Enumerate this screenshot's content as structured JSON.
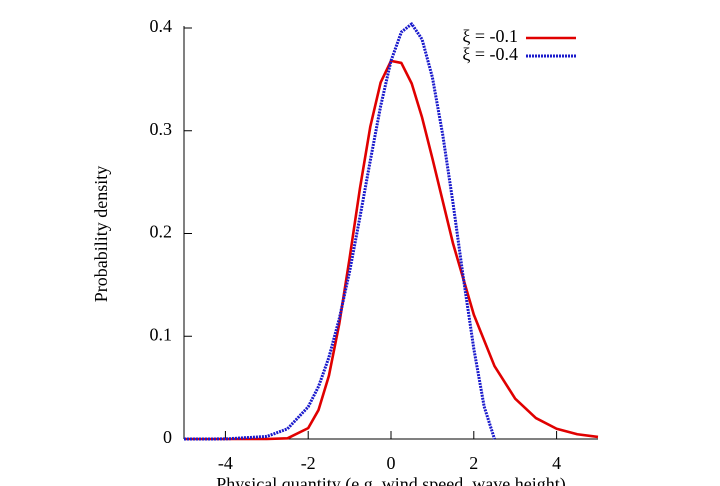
{
  "chart_data": {
    "type": "line",
    "y_label": "Probability density",
    "x_label": "Physical quantity (e.g. wind speed, wave height)",
    "xlim": [
      -5,
      5
    ],
    "xticks": [
      -4,
      -2,
      0,
      2,
      4
    ],
    "ylim": [
      0,
      0.4
    ],
    "yticks": [
      0,
      0.1,
      0.2,
      0.3,
      0.4
    ],
    "legend": "top-right",
    "series": [
      {
        "name": "ξ = -0.1",
        "color": "#e00000",
        "dash": "solid",
        "x": [
          -5,
          -4,
          -3,
          -2.5,
          -2,
          -1.75,
          -1.5,
          -1.25,
          -1,
          -0.75,
          -0.5,
          -0.25,
          0,
          0.25,
          0.5,
          0.75,
          1,
          1.5,
          2,
          2.5,
          3,
          3.5,
          4,
          4.5,
          5
        ],
        "values": [
          0,
          0,
          1e-05,
          0.00067,
          0.0106,
          0.0283,
          0.0615,
          0.112,
          0.176,
          0.244,
          0.304,
          0.347,
          0.368,
          0.366,
          0.346,
          0.313,
          0.273,
          0.19,
          0.121,
          0.071,
          0.0392,
          0.0204,
          0.01,
          0.0046,
          0.002
        ]
      },
      {
        "name": "ξ = -0.4",
        "color": "#1a1acc",
        "dash": "dotted",
        "x": [
          -5,
          -4,
          -3,
          -2.5,
          -2,
          -1.75,
          -1.5,
          -1.25,
          -1,
          -0.75,
          -0.5,
          -0.25,
          0,
          0.25,
          0.5,
          0.75,
          1,
          1.25,
          1.5,
          1.75,
          2,
          2.25,
          2.5
        ],
        "values": [
          0,
          8e-05,
          0.0025,
          0.0099,
          0.0313,
          0.0511,
          0.0794,
          0.117,
          0.163,
          0.216,
          0.271,
          0.324,
          0.368,
          0.396,
          0.404,
          0.389,
          0.352,
          0.296,
          0.229,
          0.156,
          0.0879,
          0.0316,
          0
        ]
      }
    ]
  }
}
